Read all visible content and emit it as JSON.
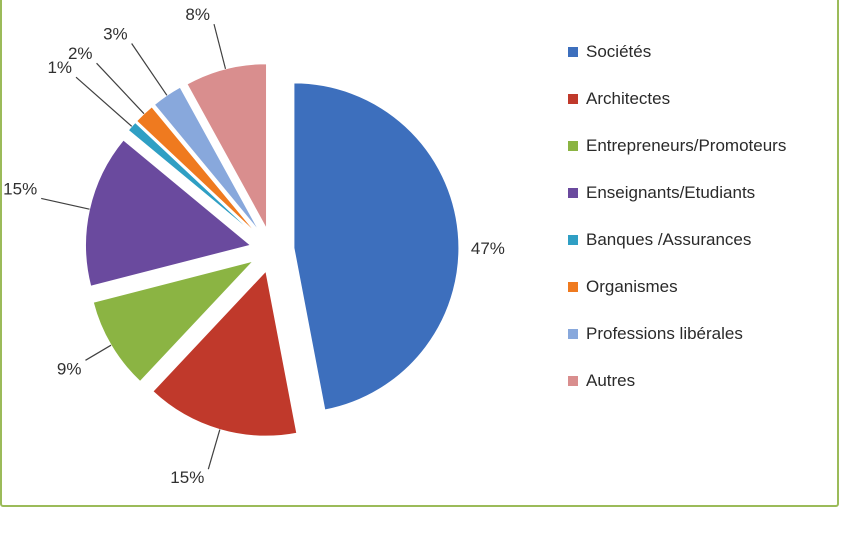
{
  "chart_data": {
    "type": "pie",
    "exploded": true,
    "title": "",
    "legend_position": "right",
    "slices": [
      {
        "label": "Sociétés",
        "value": 47,
        "display": "47%",
        "color": "#3d6fbd"
      },
      {
        "label": "Architectes",
        "value": 15,
        "display": "15%",
        "color": "#c0392b"
      },
      {
        "label": "Entrepreneurs/Promoteurs",
        "value": 9,
        "display": "9%",
        "color": "#8bb443"
      },
      {
        "label": "Enseignants/Etudiants",
        "value": 15,
        "display": "15%",
        "color": "#6a4a9e"
      },
      {
        "label": "Banques /Assurances",
        "value": 1,
        "display": "1%",
        "color": "#2f9fc4"
      },
      {
        "label": "Organismes",
        "value": 2,
        "display": "2%",
        "color": "#ef7a1f"
      },
      {
        "label": "Professions libérales",
        "value": 3,
        "display": "3%",
        "color": "#88a8dc"
      },
      {
        "label": "Autres",
        "value": 8,
        "display": "8%",
        "color": "#d98e8e"
      }
    ]
  }
}
